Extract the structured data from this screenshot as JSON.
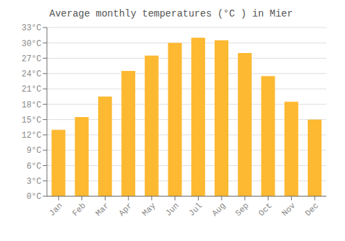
{
  "chart_data": {
    "type": "bar",
    "title": "Average monthly temperatures (°C ) in Mier",
    "categories": [
      "Jan",
      "Feb",
      "Mar",
      "Apr",
      "May",
      "Jun",
      "Jul",
      "Aug",
      "Sep",
      "Oct",
      "Nov",
      "Dec"
    ],
    "values": [
      13.0,
      15.5,
      19.5,
      24.5,
      27.5,
      30.0,
      31.0,
      30.5,
      28.0,
      23.5,
      18.5,
      15.0
    ],
    "color": "#FDB931",
    "ylim": [
      0,
      33
    ],
    "yticks": [
      {
        "value": 0,
        "label": "0°C"
      },
      {
        "value": 3,
        "label": "3°C"
      },
      {
        "value": 6,
        "label": "6°C"
      },
      {
        "value": 9,
        "label": "9°C"
      },
      {
        "value": 12,
        "label": "12°C"
      },
      {
        "value": 15,
        "label": "15°C"
      },
      {
        "value": 18,
        "label": "18°C"
      },
      {
        "value": 21,
        "label": "21°C"
      },
      {
        "value": 24,
        "label": "24°C"
      },
      {
        "value": 27,
        "label": "27°C"
      },
      {
        "value": 30,
        "label": "30°C"
      },
      {
        "value": 33,
        "label": "33°C"
      }
    ],
    "grid": true
  }
}
